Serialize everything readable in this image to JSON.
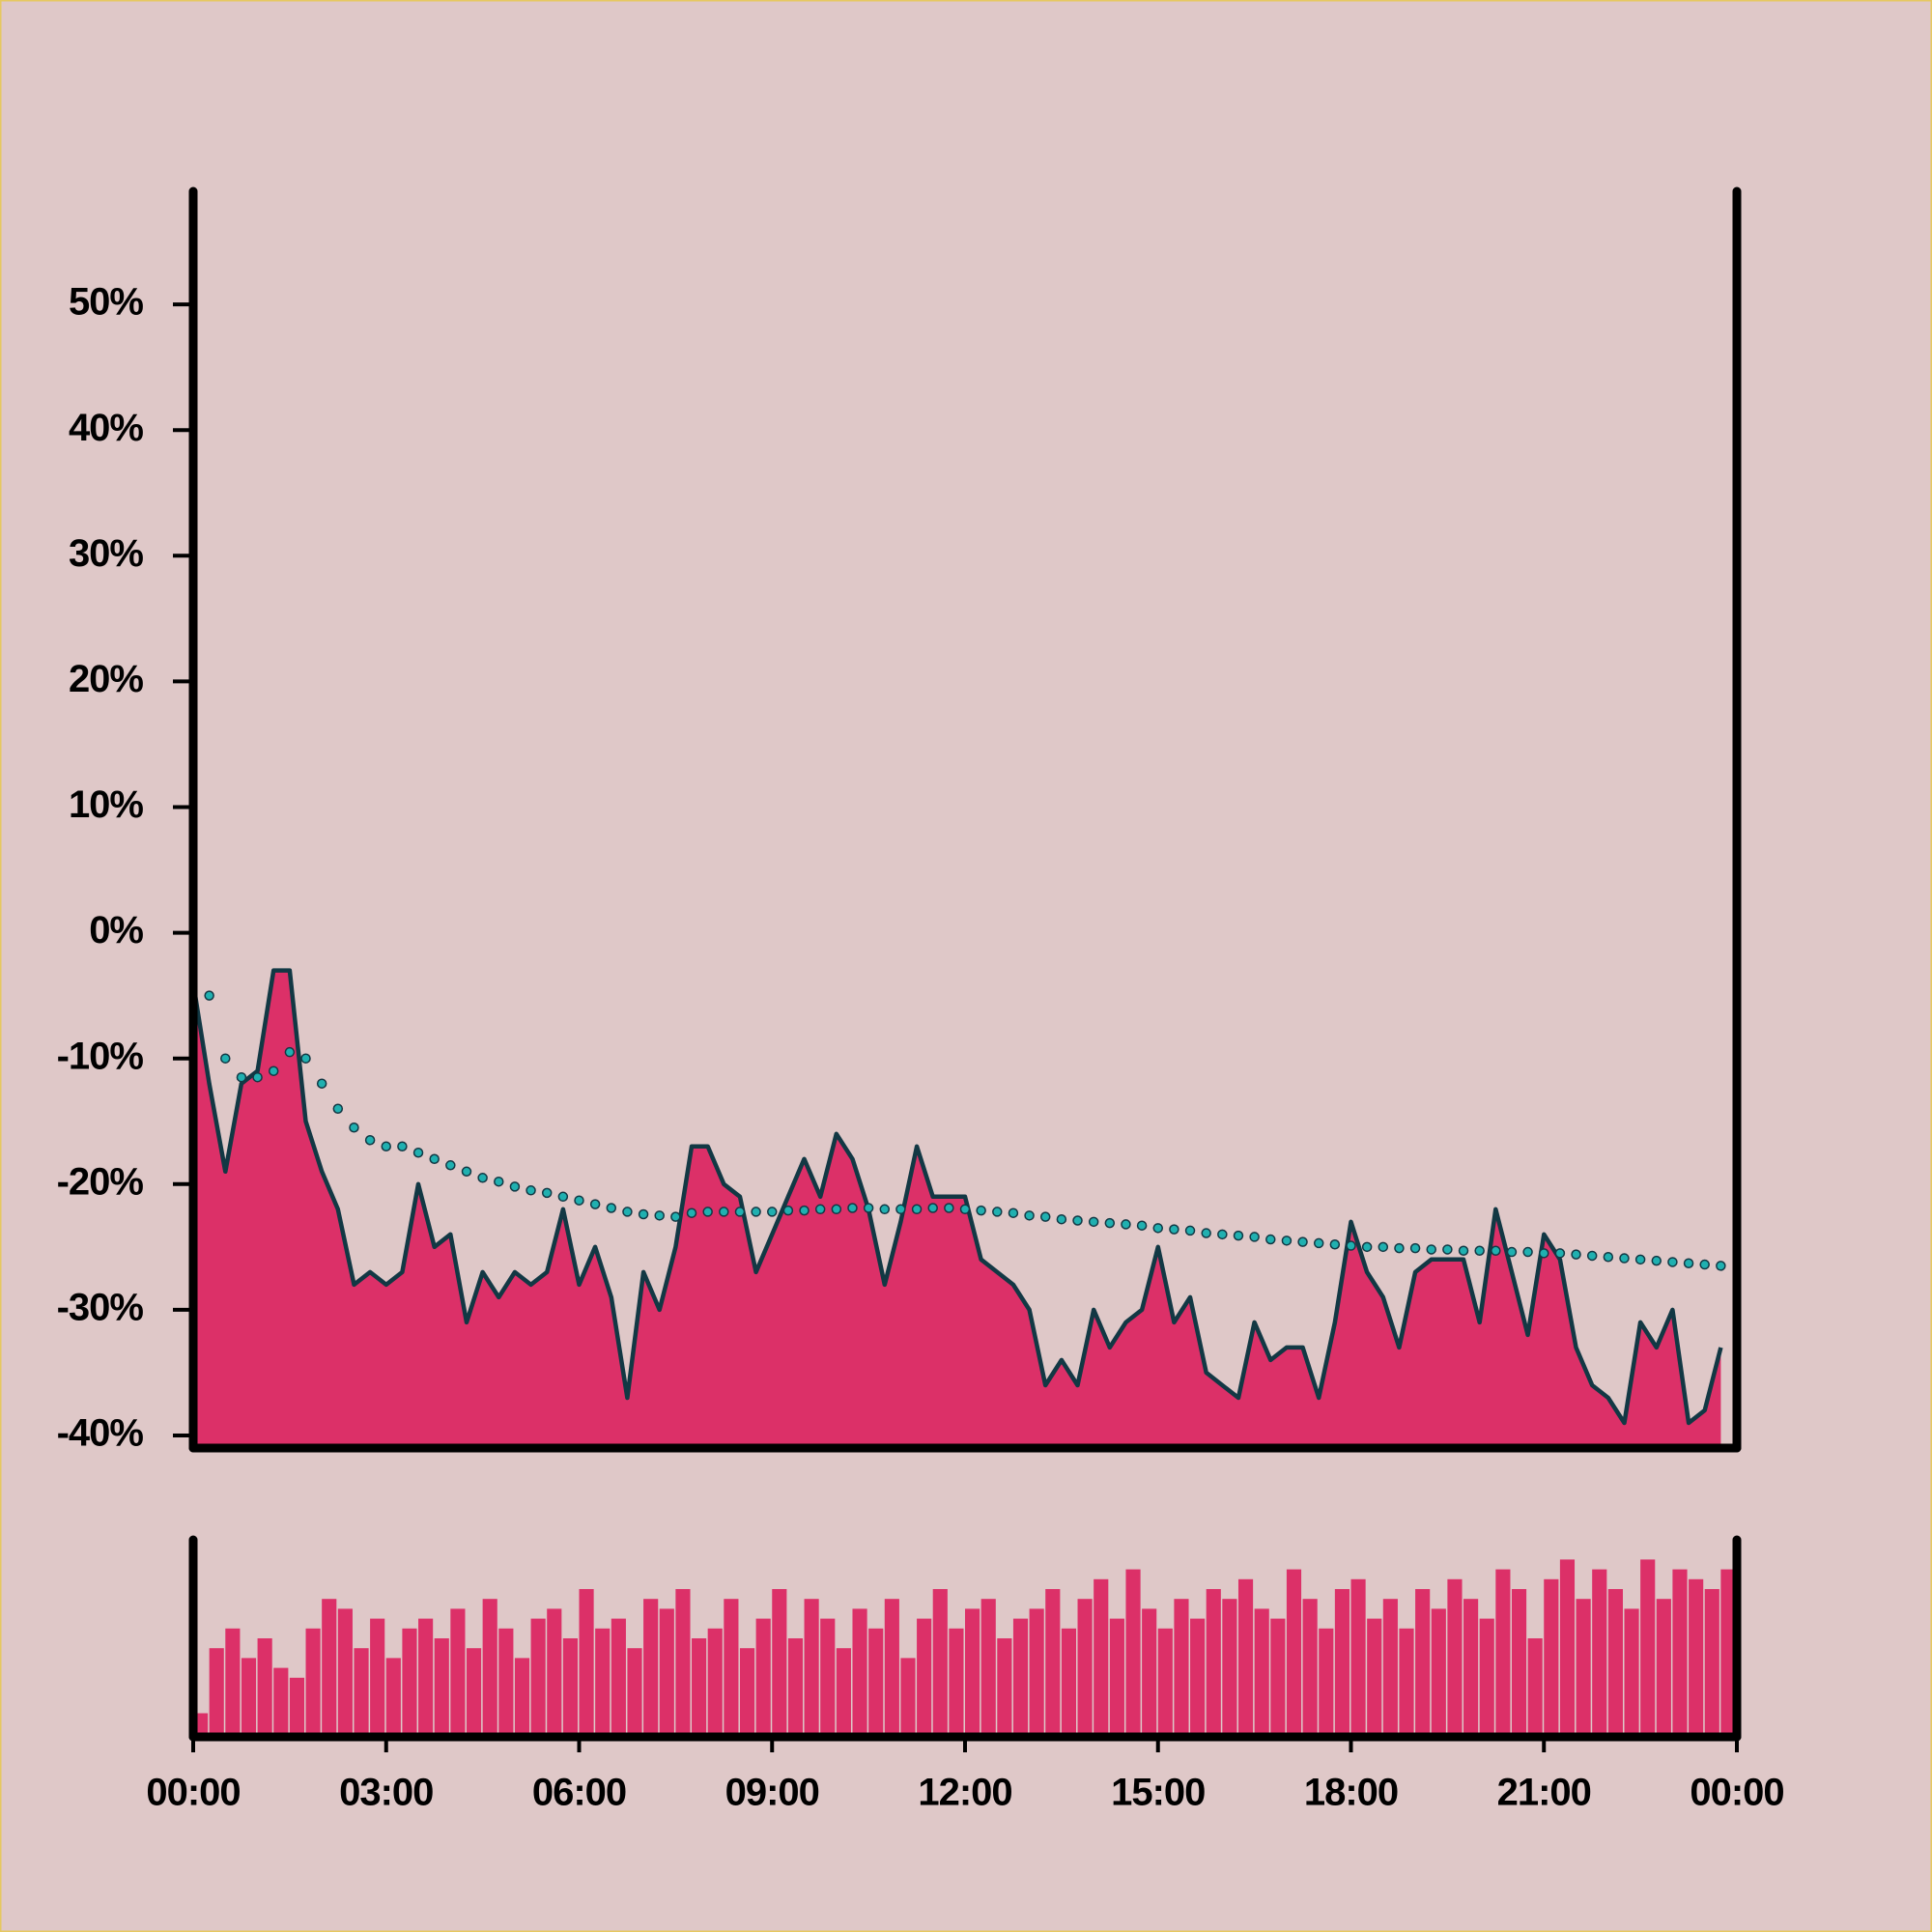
{
  "chart_data": [
    {
      "type": "area",
      "x": [
        0,
        15,
        30,
        45,
        60,
        75,
        90,
        105,
        120,
        135,
        150,
        165,
        180,
        195,
        210,
        225,
        240,
        255,
        270,
        285,
        300,
        315,
        330,
        345,
        360,
        375,
        390,
        405,
        420,
        435,
        450,
        465,
        480,
        495,
        510,
        525,
        540,
        555,
        570,
        585,
        600,
        615,
        630,
        645,
        660,
        675,
        690,
        705,
        720,
        735,
        750,
        765,
        780,
        795,
        810,
        825,
        840,
        855,
        870,
        885,
        900,
        915,
        930,
        945,
        960,
        975,
        990,
        1005,
        1020,
        1035,
        1050,
        1065,
        1080,
        1095,
        1110,
        1125,
        1140,
        1155,
        1170,
        1185,
        1200,
        1215,
        1230,
        1245,
        1260,
        1275,
        1290,
        1305,
        1320,
        1335,
        1350,
        1365,
        1380,
        1395,
        1410,
        1425
      ],
      "series": [
        {
          "color": "#dc3068",
          "line_color": "#123844",
          "values": [
            -4,
            -12,
            -19,
            -12,
            -11,
            -3,
            -3,
            -15,
            -19,
            -22,
            -28,
            -27,
            -28,
            -27,
            -20,
            -25,
            -24,
            -31,
            -27,
            -29,
            -27,
            -28,
            -27,
            -22,
            -28,
            -25,
            -29,
            -37,
            -27,
            -30,
            -25,
            -17,
            -17,
            -20,
            -21,
            -27,
            -24,
            -21,
            -18,
            -21,
            -16,
            -18,
            -22,
            -28,
            -23,
            -17,
            -21,
            -21,
            -21,
            -26,
            -27,
            -28,
            -30,
            -36,
            -34,
            -36,
            -30,
            -33,
            -31,
            -30,
            -25,
            -31,
            -29,
            -35,
            -36,
            -37,
            -31,
            -34,
            -33,
            -33,
            -37,
            -31,
            -23,
            -27,
            -29,
            -33,
            -27,
            -26,
            -26,
            -26,
            -31,
            -22,
            -27,
            -32,
            -24,
            -26,
            -33,
            -36,
            -37,
            -39,
            -31,
            -33,
            -30,
            -39,
            -38,
            -33
          ]
        },
        {
          "color": "#20b0b0",
          "style": "dotted",
          "values": [
            null,
            -5,
            -10,
            -11.5,
            -11.5,
            -11,
            -9.5,
            -10,
            -12,
            -14,
            -15.5,
            -16.5,
            -17,
            -17,
            -17.5,
            -18,
            -18.5,
            -19,
            -19.5,
            -19.8,
            -20.2,
            -20.5,
            -20.7,
            -21,
            -21.3,
            -21.6,
            -21.9,
            -22.2,
            -22.4,
            -22.5,
            -22.6,
            -22.3,
            -22.2,
            -22.2,
            -22.2,
            -22.2,
            -22.2,
            -22.1,
            -22.1,
            -22,
            -22,
            -21.9,
            -21.9,
            -22,
            -22,
            -22,
            -21.9,
            -21.9,
            -22,
            -22.1,
            -22.2,
            -22.3,
            -22.5,
            -22.6,
            -22.8,
            -22.9,
            -23,
            -23.1,
            -23.2,
            -23.3,
            -23.5,
            -23.6,
            -23.7,
            -23.9,
            -24,
            -24.1,
            -24.2,
            -24.4,
            -24.5,
            -24.6,
            -24.7,
            -24.8,
            -24.9,
            -25,
            -25,
            -25.1,
            -25.1,
            -25.2,
            -25.2,
            -25.3,
            -25.3,
            -25.3,
            -25.4,
            -25.4,
            -25.5,
            -25.5,
            -25.6,
            -25.7,
            -25.8,
            -25.9,
            -26,
            -26.1,
            -26.2,
            -26.3,
            -26.4,
            -26.5
          ]
        }
      ],
      "xlim": [
        0,
        1440
      ],
      "ylim": [
        -41,
        59
      ],
      "yticks": [
        {
          "value": -40,
          "label": "-40%"
        },
        {
          "value": -30,
          "label": "-30%"
        },
        {
          "value": -20,
          "label": "-20%"
        },
        {
          "value": -10,
          "label": "-10%"
        },
        {
          "value": 0,
          "label": "0%"
        },
        {
          "value": 10,
          "label": "10%"
        },
        {
          "value": 20,
          "label": "20%"
        },
        {
          "value": 30,
          "label": "30%"
        },
        {
          "value": 40,
          "label": "40%"
        },
        {
          "value": 50,
          "label": "50%"
        }
      ]
    },
    {
      "type": "bar",
      "x": [
        0,
        15,
        30,
        45,
        60,
        75,
        90,
        105,
        120,
        135,
        150,
        165,
        180,
        195,
        210,
        225,
        240,
        255,
        270,
        285,
        300,
        315,
        330,
        345,
        360,
        375,
        390,
        405,
        420,
        435,
        450,
        465,
        480,
        495,
        510,
        525,
        540,
        555,
        570,
        585,
        600,
        615,
        630,
        645,
        660,
        675,
        690,
        705,
        720,
        735,
        750,
        765,
        780,
        795,
        810,
        825,
        840,
        855,
        870,
        885,
        900,
        915,
        930,
        945,
        960,
        975,
        990,
        1005,
        1020,
        1035,
        1050,
        1065,
        1080,
        1095,
        1110,
        1125,
        1140,
        1155,
        1170,
        1185,
        1200,
        1215,
        1230,
        1245,
        1260,
        1275,
        1290,
        1305,
        1320,
        1335,
        1350,
        1365,
        1380,
        1395,
        1410,
        1425
      ],
      "values": [
        12,
        45,
        55,
        40,
        50,
        35,
        30,
        55,
        70,
        65,
        45,
        60,
        40,
        55,
        60,
        50,
        65,
        45,
        70,
        55,
        40,
        60,
        65,
        50,
        75,
        55,
        60,
        45,
        70,
        65,
        75,
        50,
        55,
        70,
        45,
        60,
        75,
        50,
        70,
        60,
        45,
        65,
        55,
        70,
        40,
        60,
        75,
        55,
        65,
        70,
        50,
        60,
        65,
        75,
        55,
        70,
        80,
        60,
        85,
        65,
        55,
        70,
        60,
        75,
        70,
        80,
        65,
        60,
        85,
        70,
        55,
        75,
        80,
        60,
        70,
        55,
        75,
        65,
        80,
        70,
        60,
        85,
        75,
        50,
        80,
        90,
        70,
        85,
        75,
        65,
        90,
        70,
        85,
        80,
        75,
        85
      ],
      "color": "#dc3068",
      "xlim": [
        0,
        1440
      ],
      "ylim": [
        0,
        100
      ],
      "xticks": [
        {
          "value": 0,
          "label": "00:00"
        },
        {
          "value": 180,
          "label": "03:00"
        },
        {
          "value": 360,
          "label": "06:00"
        },
        {
          "value": 540,
          "label": "09:00"
        },
        {
          "value": 720,
          "label": "12:00"
        },
        {
          "value": 900,
          "label": "15:00"
        },
        {
          "value": 1080,
          "label": "18:00"
        },
        {
          "value": 1260,
          "label": "21:00"
        },
        {
          "value": 1440,
          "label": "00:00"
        }
      ]
    }
  ]
}
